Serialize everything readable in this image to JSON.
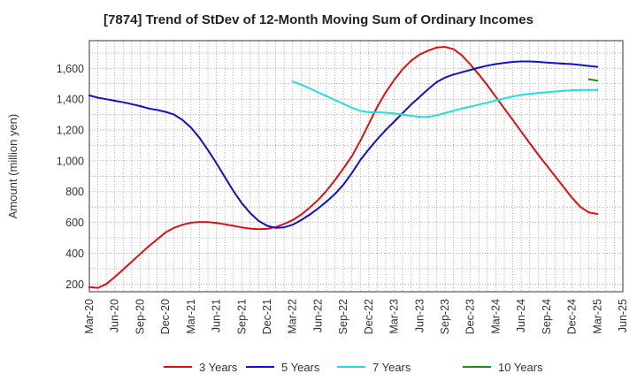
{
  "chart_data": {
    "type": "line",
    "title": "[7874]  Trend of StDev of 12-Month Moving Sum of Ordinary Incomes",
    "ylabel": "Amount (million yen)",
    "xlabel": "",
    "ylim": [
      150,
      1780
    ],
    "yticks": [
      200,
      400,
      600,
      800,
      1000,
      1200,
      1400,
      1600
    ],
    "ytick_labels": [
      "200",
      "400",
      "600",
      "800",
      "1,000",
      "1,200",
      "1,400",
      "1,600"
    ],
    "xticks": [
      "Mar-20",
      "Jun-20",
      "Sep-20",
      "Dec-20",
      "Mar-21",
      "Jun-21",
      "Sep-21",
      "Dec-21",
      "Mar-22",
      "Jun-22",
      "Sep-22",
      "Dec-22",
      "Mar-23",
      "Jun-23",
      "Sep-23",
      "Dec-23",
      "Mar-24",
      "Jun-24",
      "Sep-24",
      "Dec-24",
      "Mar-25",
      "Jun-25"
    ],
    "grid": true,
    "legend": "bottom",
    "series": [
      {
        "name": "3 Years",
        "color": "#dd1111",
        "x": [
          "2020-03",
          "2020-04",
          "2020-05",
          "2020-06",
          "2020-07",
          "2020-08",
          "2020-09",
          "2020-10",
          "2020-11",
          "2020-12",
          "2021-01",
          "2021-02",
          "2021-03",
          "2021-04",
          "2021-05",
          "2021-06",
          "2021-07",
          "2021-08",
          "2021-09",
          "2021-10",
          "2021-11",
          "2021-12",
          "2022-01",
          "2022-02",
          "2022-03",
          "2022-04",
          "2022-05",
          "2022-06",
          "2022-07",
          "2022-08",
          "2022-09",
          "2022-10",
          "2022-11",
          "2022-12",
          "2023-01",
          "2023-02",
          "2023-03",
          "2023-04",
          "2023-05",
          "2023-06",
          "2023-07",
          "2023-08",
          "2023-09",
          "2023-10",
          "2023-11",
          "2023-12",
          "2024-01",
          "2024-02",
          "2024-03",
          "2024-04",
          "2024-05",
          "2024-06",
          "2024-07",
          "2024-08",
          "2024-09",
          "2024-10",
          "2024-11",
          "2024-12",
          "2025-01",
          "2025-02",
          "2025-03"
        ],
        "values": [
          180,
          175,
          200,
          245,
          295,
          345,
          395,
          445,
          490,
          535,
          565,
          585,
          598,
          603,
          602,
          597,
          588,
          578,
          568,
          560,
          556,
          558,
          570,
          590,
          615,
          650,
          695,
          745,
          805,
          875,
          950,
          1030,
          1130,
          1240,
          1350,
          1445,
          1525,
          1595,
          1650,
          1690,
          1715,
          1735,
          1740,
          1725,
          1685,
          1625,
          1560,
          1490,
          1415,
          1340,
          1265,
          1190,
          1115,
          1040,
          970,
          900,
          830,
          760,
          700,
          665,
          655
        ]
      },
      {
        "name": "5 Years",
        "color": "#1111cc",
        "x": [
          "2020-03",
          "2020-04",
          "2020-05",
          "2020-06",
          "2020-07",
          "2020-08",
          "2020-09",
          "2020-10",
          "2020-11",
          "2020-12",
          "2021-01",
          "2021-02",
          "2021-03",
          "2021-04",
          "2021-05",
          "2021-06",
          "2021-07",
          "2021-08",
          "2021-09",
          "2021-10",
          "2021-11",
          "2021-12",
          "2022-01",
          "2022-02",
          "2022-03",
          "2022-04",
          "2022-05",
          "2022-06",
          "2022-07",
          "2022-08",
          "2022-09",
          "2022-10",
          "2022-11",
          "2022-12",
          "2023-01",
          "2023-02",
          "2023-03",
          "2023-04",
          "2023-05",
          "2023-06",
          "2023-07",
          "2023-08",
          "2023-09",
          "2023-10",
          "2023-11",
          "2023-12",
          "2024-01",
          "2024-02",
          "2024-03",
          "2024-04",
          "2024-05",
          "2024-06",
          "2024-07",
          "2024-08",
          "2024-09",
          "2024-10",
          "2024-11",
          "2024-12",
          "2025-01",
          "2025-02",
          "2025-03"
        ],
        "values": [
          1425,
          1410,
          1400,
          1390,
          1380,
          1368,
          1355,
          1340,
          1330,
          1318,
          1300,
          1265,
          1215,
          1150,
          1070,
          985,
          895,
          805,
          725,
          660,
          610,
          578,
          565,
          568,
          585,
          615,
          650,
          690,
          735,
          785,
          845,
          920,
          1005,
          1075,
          1140,
          1200,
          1255,
          1310,
          1365,
          1415,
          1465,
          1510,
          1540,
          1560,
          1575,
          1590,
          1605,
          1618,
          1628,
          1636,
          1642,
          1645,
          1645,
          1642,
          1638,
          1634,
          1631,
          1628,
          1622,
          1616,
          1610
        ]
      },
      {
        "name": "7 Years",
        "color": "#22dddd",
        "x": [
          "2022-03",
          "2022-04",
          "2022-05",
          "2022-06",
          "2022-07",
          "2022-08",
          "2022-09",
          "2022-10",
          "2022-11",
          "2022-12",
          "2023-01",
          "2023-02",
          "2023-03",
          "2023-04",
          "2023-05",
          "2023-06",
          "2023-07",
          "2023-08",
          "2023-09",
          "2023-10",
          "2023-11",
          "2023-12",
          "2024-01",
          "2024-02",
          "2024-03",
          "2024-04",
          "2024-05",
          "2024-06",
          "2024-07",
          "2024-08",
          "2024-09",
          "2024-10",
          "2024-11",
          "2024-12",
          "2025-01",
          "2025-02",
          "2025-03"
        ],
        "values": [
          1515,
          1495,
          1470,
          1445,
          1420,
          1395,
          1370,
          1345,
          1325,
          1315,
          1315,
          1312,
          1308,
          1300,
          1292,
          1285,
          1285,
          1295,
          1310,
          1325,
          1340,
          1352,
          1365,
          1378,
          1392,
          1405,
          1418,
          1428,
          1435,
          1440,
          1445,
          1450,
          1454,
          1458,
          1460,
          1460,
          1460
        ]
      },
      {
        "name": "10 Years",
        "color": "#228822",
        "x": [
          "2025-02",
          "2025-03"
        ],
        "values": [
          1530,
          1520
        ]
      }
    ]
  }
}
